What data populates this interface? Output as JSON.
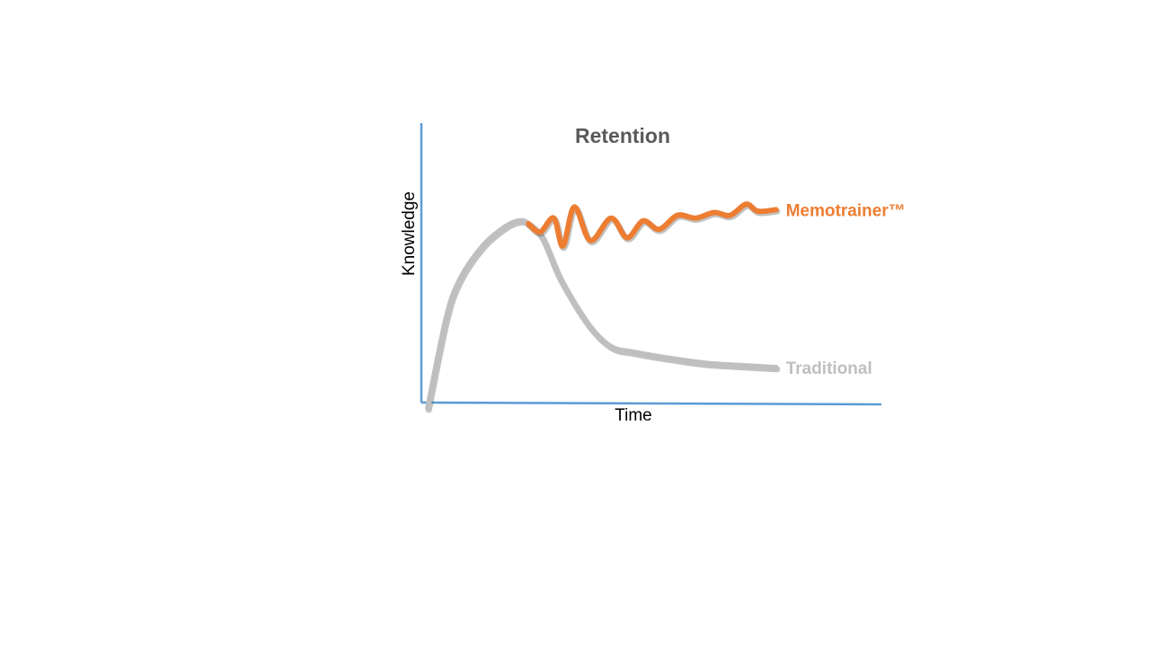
{
  "chart_data": {
    "type": "line",
    "title": "Retention",
    "xlabel": "Time",
    "ylabel": "Knowledge",
    "xlim": [
      0,
      100
    ],
    "ylim": [
      0,
      100
    ],
    "grid": false,
    "legend": "inline labels at line ends",
    "axis_color": "#5B9BD5",
    "series": [
      {
        "name": "Traditional",
        "color": "#BFBFBF",
        "points": [
          [
            1,
            -2
          ],
          [
            5,
            30
          ],
          [
            8,
            44
          ],
          [
            13,
            56
          ],
          [
            18,
            63
          ],
          [
            21,
            65
          ],
          [
            23,
            64
          ],
          [
            26,
            59
          ],
          [
            30,
            44
          ],
          [
            36,
            28
          ],
          [
            41,
            20
          ],
          [
            46,
            18
          ],
          [
            53,
            16
          ],
          [
            62,
            14
          ],
          [
            72,
            13
          ],
          [
            77,
            12.5
          ]
        ]
      },
      {
        "name": "Memotrainer™",
        "color": "#ED7D31",
        "points": [
          [
            23,
            64
          ],
          [
            25.5,
            61
          ],
          [
            28.5,
            66
          ],
          [
            30.5,
            56
          ],
          [
            33,
            70
          ],
          [
            36.5,
            58
          ],
          [
            41,
            66
          ],
          [
            44.5,
            59
          ],
          [
            48,
            65
          ],
          [
            51.5,
            62
          ],
          [
            55.5,
            67
          ],
          [
            59.5,
            66
          ],
          [
            63.5,
            68
          ],
          [
            67,
            67
          ],
          [
            70.5,
            71
          ],
          [
            73,
            68.5
          ],
          [
            77,
            69
          ]
        ]
      }
    ]
  }
}
